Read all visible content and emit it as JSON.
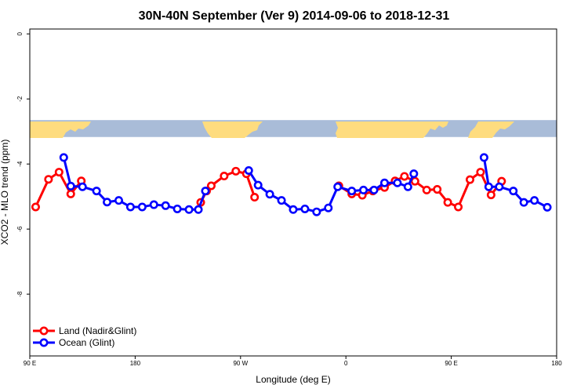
{
  "chart_data": {
    "type": "line",
    "title": "30N-40N September (Ver 9)   2014-09-06 to 2018-12-31",
    "xlabel": "Longitude (deg E)",
    "ylabel": "XCO2 - MLO trend (ppm)",
    "xlim": [
      90,
      540
    ],
    "ylim": [
      -9.9,
      0.15
    ],
    "x_ticks": [
      {
        "value": 90,
        "label": "90 E"
      },
      {
        "value": 180,
        "label": "180"
      },
      {
        "value": 270,
        "label": "90 W"
      },
      {
        "value": 360,
        "label": "0"
      },
      {
        "value": 450,
        "label": "90 E"
      },
      {
        "value": 540,
        "label": "180"
      }
    ],
    "y_ticks": [
      {
        "value": 0,
        "label": "0"
      },
      {
        "value": -2,
        "label": "-2"
      },
      {
        "value": -4,
        "label": "-4"
      },
      {
        "value": -6,
        "label": "-6"
      },
      {
        "value": -8,
        "label": "-8"
      }
    ],
    "map_band": {
      "y_top": -2.65,
      "y_bottom": -3.17,
      "land_color": "#fedc7f",
      "ocean_color": "#a9bcd8"
    },
    "legend_position": "bottom-left",
    "series": [
      {
        "name": "Land (Nadir&Glint)",
        "color": "#ff0000",
        "segments": [
          [
            [
              95,
              -5.32
            ],
            [
              106,
              -4.47
            ],
            [
              115,
              -4.25
            ],
            [
              125,
              -4.92
            ],
            [
              134,
              -4.52
            ]
          ],
          [
            [
              236,
              -5.18
            ],
            [
              241,
              -4.83
            ],
            [
              245,
              -4.67
            ],
            [
              256,
              -4.37
            ],
            [
              266,
              -4.22
            ],
            [
              275,
              -4.3
            ],
            [
              282,
              -5.02
            ]
          ],
          [
            [
              354,
              -4.67
            ],
            [
              365,
              -4.92
            ],
            [
              374,
              -4.96
            ],
            [
              383,
              -4.83
            ],
            [
              393,
              -4.72
            ],
            [
              402,
              -4.52
            ],
            [
              410,
              -4.38
            ],
            [
              419,
              -4.53
            ],
            [
              429,
              -4.8
            ],
            [
              438,
              -4.78
            ],
            [
              447,
              -5.18
            ],
            [
              456,
              -5.32
            ],
            [
              466,
              -4.48
            ],
            [
              475,
              -4.25
            ],
            [
              484,
              -4.95
            ],
            [
              493,
              -4.53
            ]
          ]
        ]
      },
      {
        "name": "Ocean (Glint)",
        "color": "#0000ff",
        "segments": [
          [
            [
              119,
              -3.8
            ],
            [
              125,
              -4.68
            ],
            [
              135,
              -4.7
            ],
            [
              147,
              -4.83
            ],
            [
              156,
              -5.17
            ],
            [
              166,
              -5.12
            ],
            [
              176,
              -5.32
            ],
            [
              186,
              -5.32
            ],
            [
              196,
              -5.25
            ],
            [
              206,
              -5.28
            ],
            [
              216,
              -5.38
            ],
            [
              226,
              -5.4
            ],
            [
              234,
              -5.4
            ],
            [
              240,
              -4.83
            ]
          ],
          [
            [
              277,
              -4.2
            ],
            [
              285,
              -4.65
            ],
            [
              295,
              -4.93
            ],
            [
              305,
              -5.12
            ],
            [
              315,
              -5.4
            ],
            [
              325,
              -5.38
            ],
            [
              335,
              -5.47
            ],
            [
              345,
              -5.35
            ],
            [
              353,
              -4.7
            ],
            [
              365,
              -4.83
            ],
            [
              375,
              -4.8
            ],
            [
              384,
              -4.8
            ],
            [
              393,
              -4.58
            ],
            [
              404,
              -4.58
            ],
            [
              413,
              -4.7
            ],
            [
              418,
              -4.3
            ]
          ]
        ],
        "segments_b": [
          [
            [
              478,
              -3.8
            ],
            [
              482,
              -4.7
            ],
            [
              491,
              -4.7
            ],
            [
              503,
              -4.83
            ],
            [
              512,
              -5.18
            ],
            [
              521,
              -5.12
            ],
            [
              532,
              -5.33
            ]
          ]
        ]
      }
    ]
  }
}
